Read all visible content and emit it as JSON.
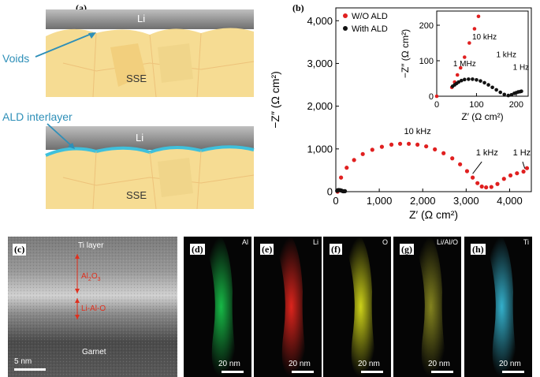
{
  "panels": {
    "a": {
      "label": "(a)",
      "top_layer": "Li",
      "bottom_layer": "SSE",
      "voids_label": "Voids",
      "ald_label": "ALD interlayer",
      "layer_li_2": "Li",
      "layer_sse_2": "SSE"
    },
    "b": {
      "label": "(b)"
    },
    "c": {
      "label": "(c)",
      "ti_layer": "Ti layer",
      "al2o3": "Al",
      "al2o3_sub": "2",
      "al2o3_o": "O",
      "al2o3_sub3": "3",
      "li_al_o": "Li-Al-O",
      "garnet": "Garnet",
      "scale": "5 nm"
    },
    "maps": [
      {
        "letter": "(d)",
        "title": "Al",
        "scale": "20 nm",
        "color": "#18c34a"
      },
      {
        "letter": "(e)",
        "title": "Li",
        "scale": "20 nm",
        "color": "#e8261e"
      },
      {
        "letter": "(f)",
        "title": "O",
        "scale": "20 nm",
        "color": "#d8dd1a"
      },
      {
        "letter": "(g)",
        "title": "Li/Al/O",
        "scale": "20 nm",
        "color": "#8a8a20"
      },
      {
        "letter": "(h)",
        "title": "Ti",
        "scale": "20 nm",
        "color": "#36b9d6"
      }
    ]
  },
  "chart_data": [
    {
      "type": "scatter",
      "xlabel": "Z′ (Ω cm²)",
      "ylabel": "−Z″ (Ω cm²)",
      "xlim": [
        0,
        4500
      ],
      "ylim": [
        0,
        4300
      ],
      "x_ticks": [
        "0",
        "1,000",
        "2,000",
        "3,000",
        "4,000"
      ],
      "y_ticks": [
        "0",
        "1,000",
        "2,000",
        "3,000",
        "4,000"
      ],
      "legend_position": "top-left",
      "series": [
        {
          "name": "W/O ALD",
          "color": "#e02020",
          "x": [
            40,
            120,
            250,
            420,
            620,
            840,
            1060,
            1280,
            1480,
            1680,
            1880,
            2080,
            2280,
            2480,
            2680,
            2860,
            3020,
            3150,
            3260,
            3360,
            3460,
            3580,
            3720,
            3870,
            4020,
            4170,
            4320,
            4400
          ],
          "y": [
            0,
            330,
            560,
            740,
            880,
            980,
            1050,
            1100,
            1120,
            1120,
            1100,
            1060,
            990,
            900,
            780,
            640,
            480,
            330,
            200,
            120,
            100,
            110,
            180,
            300,
            380,
            430,
            470,
            550
          ]
        },
        {
          "name": "With ALD",
          "color": "#111111",
          "x": [
            30,
            45,
            65,
            90,
            115,
            140,
            160,
            180,
            200,
            210
          ],
          "y": [
            20,
            35,
            38,
            36,
            30,
            22,
            10,
            8,
            10,
            12
          ]
        }
      ],
      "annotations": [
        "10 kHz",
        "1 kHz",
        "1 Hz"
      ]
    },
    {
      "type": "scatter",
      "xlabel": "Z′ (Ω cm²)",
      "ylabel": "−Z″ (Ω cm²)",
      "xlim": [
        0,
        230
      ],
      "ylim": [
        0,
        240
      ],
      "x_ticks": [
        "0",
        "100",
        "200"
      ],
      "y_ticks": [
        "0",
        "100",
        "200"
      ],
      "series": [
        {
          "name": "W/O ALD",
          "color": "#e02020",
          "x": [
            0,
            38,
            45,
            52,
            60,
            70,
            82,
            95,
            105
          ],
          "y": [
            0,
            25,
            40,
            60,
            80,
            110,
            150,
            190,
            225
          ]
        },
        {
          "name": "With ALD",
          "color": "#111111",
          "x": [
            40,
            45,
            50,
            55,
            62,
            70,
            80,
            90,
            100,
            110,
            120,
            130,
            140,
            150,
            160,
            170,
            180,
            188,
            195,
            200,
            205,
            210,
            213
          ],
          "y": [
            28,
            32,
            36,
            40,
            44,
            47,
            48,
            48,
            46,
            43,
            38,
            32,
            25,
            18,
            11,
            5,
            2,
            4,
            8,
            10,
            12,
            13,
            14
          ]
        }
      ],
      "annotations": [
        "10 kHz",
        "1 MHz",
        "1 kHz",
        "1 Hz"
      ]
    }
  ]
}
